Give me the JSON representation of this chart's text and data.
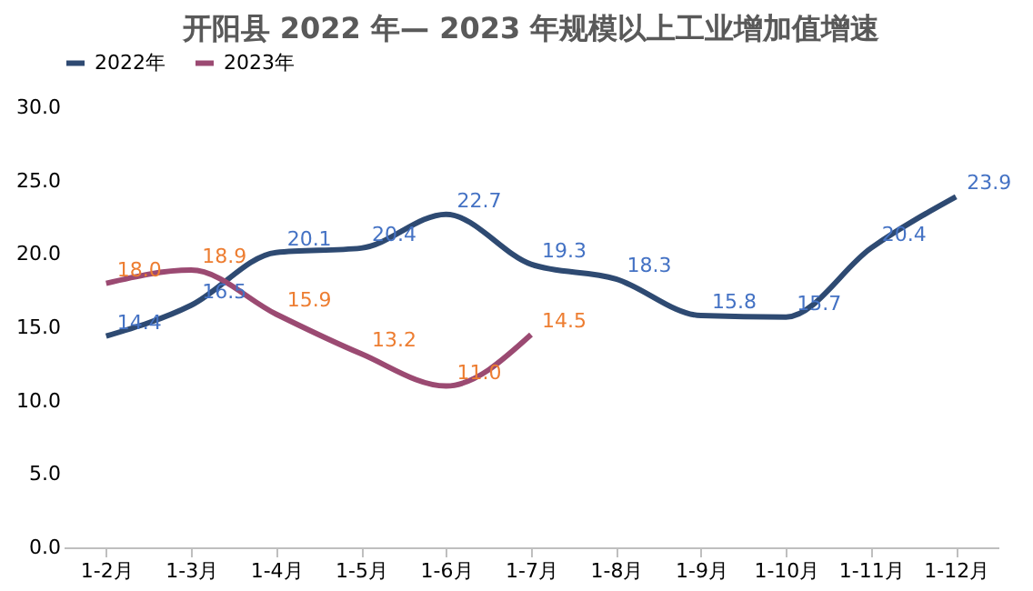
{
  "chart_data": {
    "type": "line",
    "title": "开阳县 2022 年— 2023 年规模以上工业增加值增速",
    "categories": [
      "1-2月",
      "1-3月",
      "1-4月",
      "1-5月",
      "1-6月",
      "1-7月",
      "1-8月",
      "1-9月",
      "1-10月",
      "1-11月",
      "1-12月"
    ],
    "series": [
      {
        "name": "2022年",
        "color": "#2e4a72",
        "values": [
          14.4,
          16.5,
          20.1,
          20.4,
          22.7,
          19.3,
          18.3,
          15.8,
          15.7,
          20.4,
          23.9
        ],
        "value_labels": [
          "14.4",
          "16.5",
          "20.1",
          "20.4",
          "22.7",
          "19.3",
          "18.3",
          "15.8",
          "15.7",
          "20.4",
          "23.9"
        ]
      },
      {
        "name": "2023年",
        "color": "#9b4a72",
        "values": [
          18.0,
          18.9,
          15.9,
          13.2,
          11.0,
          14.5,
          null,
          null,
          null,
          null,
          null
        ],
        "value_labels": [
          "18.0",
          "18.9",
          "15.9",
          "13.2",
          "11.0",
          "14.5",
          null,
          null,
          null,
          null,
          null
        ]
      }
    ],
    "ylim": [
      0,
      30
    ],
    "yticks": [
      {
        "value": 0,
        "label": "0.0"
      },
      {
        "value": 5,
        "label": "5.0"
      },
      {
        "value": 10,
        "label": "10.0"
      },
      {
        "value": 15,
        "label": "15.0"
      },
      {
        "value": 20,
        "label": "20.0"
      },
      {
        "value": 25,
        "label": "25.0"
      },
      {
        "value": 30,
        "label": "30.0"
      }
    ],
    "legend": "top",
    "grid": false,
    "marker": "none",
    "line_style": "solid"
  }
}
